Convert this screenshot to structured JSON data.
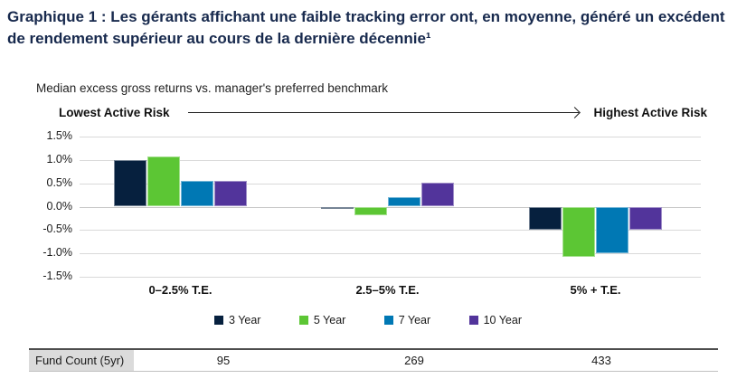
{
  "title": "Graphique 1 : Les gérants affichant une faible tracking error ont, en moyenne, généré un excédent de rendement supérieur au cours de la dernière décennie¹",
  "subtitle": "Median excess gross returns vs. manager's preferred benchmark",
  "risk_axis": {
    "left_label": "Lowest Active Risk",
    "right_label": "Highest Active Risk"
  },
  "chart_data": {
    "type": "bar",
    "title": "Median excess gross returns vs. manager's preferred benchmark",
    "categories": [
      "0–2.5% T.E.",
      "2.5–5% T.E.",
      "5% + T.E."
    ],
    "series": [
      {
        "name": "3 Year",
        "color": "#06203E",
        "values": [
          1.0,
          -0.05,
          -0.5
        ]
      },
      {
        "name": "5 Year",
        "color": "#5CC634",
        "values": [
          1.08,
          -0.18,
          -1.08
        ]
      },
      {
        "name": "7 Year",
        "color": "#0078B4",
        "values": [
          0.56,
          0.21,
          -1.0
        ]
      },
      {
        "name": "10 Year",
        "color": "#52349B",
        "values": [
          0.56,
          0.51,
          -0.5
        ]
      }
    ],
    "ylim": [
      -1.5,
      1.5
    ],
    "ytick_step": 0.5,
    "ytick_labels": [
      "1.5%",
      "1.0%",
      "0.5%",
      "0.0%",
      "-0.5%",
      "-1.0%",
      "-1.5%"
    ],
    "grid": true,
    "legend_position": "bottom",
    "gridline_color": "#D9D9D9"
  },
  "fund_count_row": {
    "label": "Fund Count (5yr)",
    "values": [
      "95",
      "269",
      "433"
    ]
  }
}
